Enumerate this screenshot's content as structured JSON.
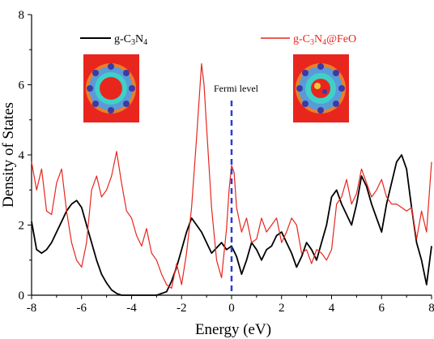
{
  "chart_data": {
    "type": "line",
    "xlabel": "Energy (eV)",
    "ylabel": "Density of States",
    "xlim": [
      -8,
      8
    ],
    "ylim": [
      0,
      8
    ],
    "xticks": [
      -8,
      -6,
      -4,
      -2,
      0,
      2,
      4,
      6,
      8
    ],
    "yticks": [
      0,
      2,
      4,
      6,
      8
    ],
    "grid": false,
    "legend": {
      "placement": "top",
      "entries": [
        {
          "parts": [
            "g-C",
            "3",
            "N",
            "4"
          ]
        },
        {
          "parts": [
            "g-C",
            "3",
            "N",
            "4",
            "@FeO"
          ]
        }
      ]
    },
    "annotations": [
      {
        "text": "Fermi level",
        "x": 0
      }
    ],
    "colors": {
      "series1": "#000000",
      "series2": "#e8261e",
      "fermi": "#2a3fd0",
      "inset_bg": "#e8261e"
    },
    "series": [
      {
        "color": "#000000",
        "x": [
          -8.0,
          -7.8,
          -7.6,
          -7.4,
          -7.2,
          -7.0,
          -6.8,
          -6.6,
          -6.4,
          -6.2,
          -6.0,
          -5.8,
          -5.6,
          -5.4,
          -5.2,
          -5.0,
          -4.8,
          -4.6,
          -4.4,
          -4.2,
          -4.0,
          -3.0,
          -2.6,
          -2.4,
          -2.2,
          -2.0,
          -1.8,
          -1.6,
          -1.4,
          -1.2,
          -1.0,
          -0.8,
          -0.6,
          -0.4,
          -0.2,
          0.0,
          0.2,
          0.4,
          0.6,
          0.8,
          1.0,
          1.2,
          1.4,
          1.6,
          1.8,
          2.0,
          2.2,
          2.4,
          2.6,
          2.8,
          3.0,
          3.2,
          3.4,
          3.6,
          3.8,
          4.0,
          4.2,
          4.4,
          4.6,
          4.8,
          5.0,
          5.2,
          5.4,
          5.6,
          5.8,
          6.0,
          6.2,
          6.4,
          6.6,
          6.8,
          7.0,
          7.2,
          7.4,
          7.6,
          7.8,
          8.0
        ],
        "y": [
          2.1,
          1.3,
          1.2,
          1.3,
          1.5,
          1.8,
          2.1,
          2.4,
          2.6,
          2.7,
          2.5,
          2.0,
          1.5,
          1.0,
          0.6,
          0.35,
          0.15,
          0.05,
          0.0,
          0.0,
          0.0,
          0.0,
          0.1,
          0.4,
          0.8,
          1.3,
          1.8,
          2.2,
          2.0,
          1.8,
          1.5,
          1.2,
          1.35,
          1.5,
          1.3,
          1.4,
          1.1,
          0.6,
          1.0,
          1.5,
          1.3,
          1.0,
          1.3,
          1.4,
          1.7,
          1.8,
          1.5,
          1.2,
          0.8,
          1.1,
          1.5,
          1.3,
          1.0,
          1.5,
          2.0,
          2.8,
          3.0,
          2.6,
          2.3,
          2.0,
          2.6,
          3.4,
          3.1,
          2.6,
          2.2,
          1.8,
          2.6,
          3.2,
          3.8,
          4.0,
          3.6,
          2.5,
          1.5,
          1.0,
          0.3,
          1.4
        ]
      },
      {
        "color": "#e8261e",
        "x": [
          -8.0,
          -7.8,
          -7.6,
          -7.4,
          -7.2,
          -7.0,
          -6.8,
          -6.6,
          -6.4,
          -6.2,
          -6.0,
          -5.8,
          -5.6,
          -5.4,
          -5.2,
          -5.0,
          -4.8,
          -4.6,
          -4.4,
          -4.2,
          -4.0,
          -3.8,
          -3.6,
          -3.4,
          -3.2,
          -3.0,
          -2.8,
          -2.6,
          -2.4,
          -2.2,
          -2.0,
          -1.8,
          -1.6,
          -1.4,
          -1.2,
          -1.1,
          -1.0,
          -0.8,
          -0.6,
          -0.4,
          -0.2,
          -0.1,
          0.0,
          0.1,
          0.2,
          0.4,
          0.6,
          0.8,
          1.0,
          1.2,
          1.4,
          1.6,
          1.8,
          2.0,
          2.2,
          2.4,
          2.6,
          2.8,
          3.0,
          3.2,
          3.4,
          3.6,
          3.8,
          4.0,
          4.2,
          4.4,
          4.6,
          4.8,
          5.0,
          5.2,
          5.4,
          5.6,
          5.8,
          6.0,
          6.2,
          6.4,
          6.6,
          6.8,
          7.0,
          7.2,
          7.4,
          7.6,
          7.8,
          8.0
        ],
        "y": [
          3.8,
          3.0,
          3.6,
          2.4,
          2.3,
          3.2,
          3.6,
          2.4,
          1.5,
          1.0,
          0.8,
          1.5,
          3.0,
          3.4,
          2.8,
          3.0,
          3.4,
          4.1,
          3.2,
          2.4,
          2.2,
          1.7,
          1.4,
          1.9,
          1.2,
          1.0,
          0.6,
          0.3,
          0.2,
          0.9,
          0.3,
          1.2,
          2.5,
          4.5,
          6.6,
          6.0,
          4.8,
          2.5,
          1.0,
          0.5,
          1.9,
          3.0,
          3.7,
          3.5,
          2.5,
          1.8,
          2.2,
          1.5,
          1.6,
          2.2,
          1.8,
          2.0,
          2.2,
          1.5,
          1.8,
          2.2,
          2.0,
          1.2,
          1.3,
          0.9,
          1.3,
          1.2,
          1.0,
          1.3,
          2.6,
          2.8,
          3.3,
          2.6,
          2.9,
          3.6,
          3.2,
          2.8,
          3.0,
          3.3,
          2.8,
          2.6,
          2.6,
          2.5,
          2.4,
          2.5,
          1.6,
          2.4,
          1.8,
          3.8
        ]
      }
    ]
  }
}
